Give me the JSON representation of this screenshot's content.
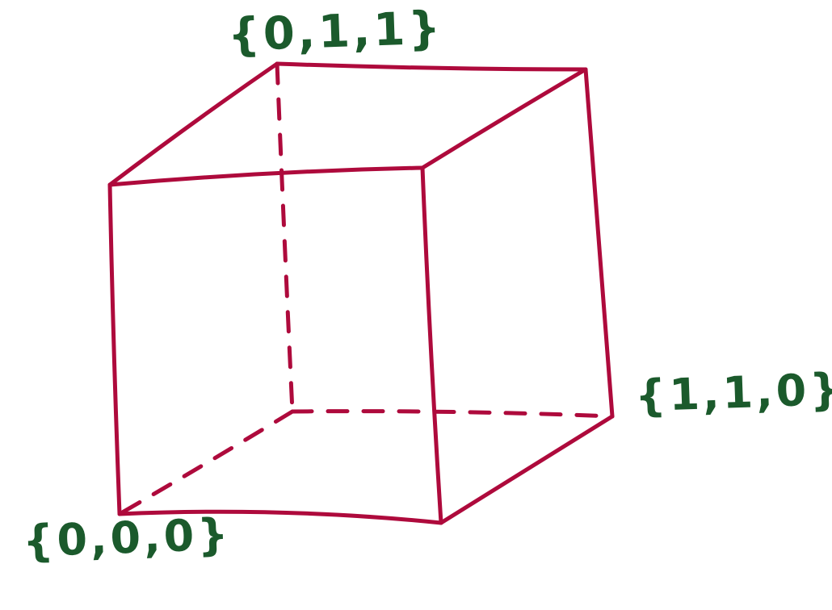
{
  "colors": {
    "cube_edges": "#ae0a3c",
    "labels": "#1b5a2c",
    "background": "#ffffff"
  },
  "diagram": {
    "type": "unit-cube-sketch",
    "style": "hand-drawn",
    "labels": {
      "top_back_left": "{0,1,1}",
      "bottom_back_right": "{1,1,0}",
      "bottom_front_left": "{0,0,0}"
    }
  }
}
